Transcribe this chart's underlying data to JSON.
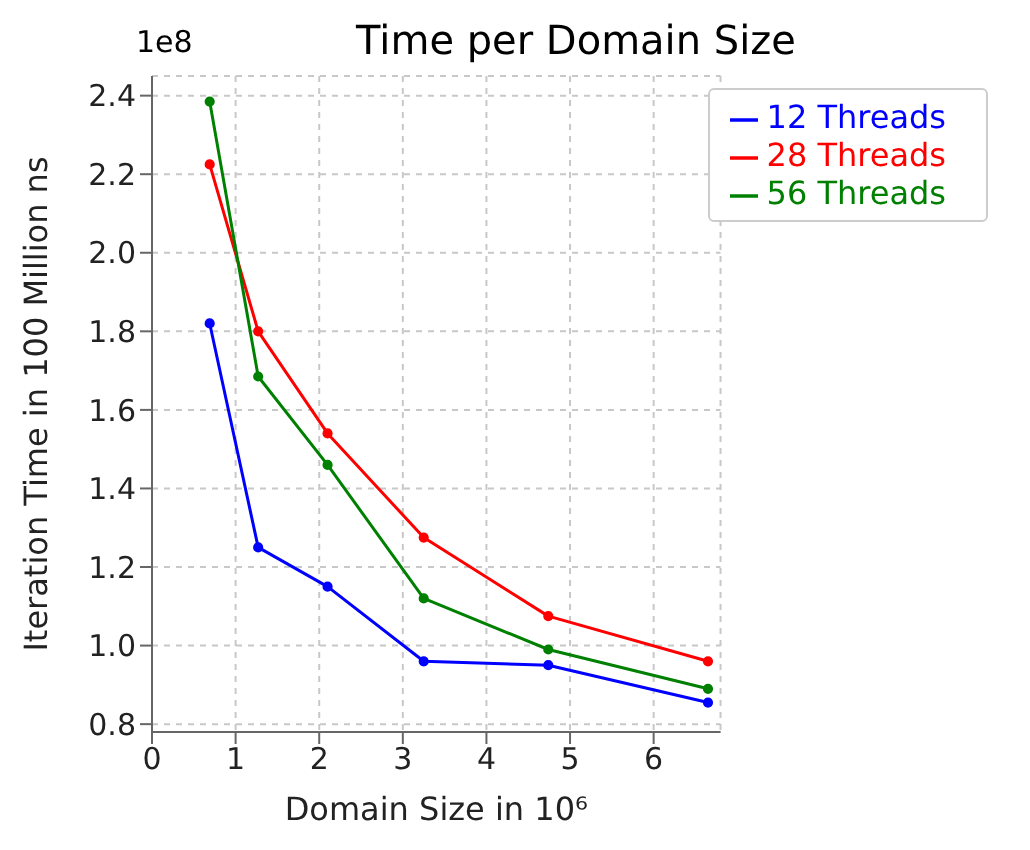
{
  "chart_data": {
    "type": "line",
    "title": "Time per Domain Size",
    "xlabel": "Domain Size in 10⁶",
    "ylabel": "Iteration Time in 100 Million ns",
    "annotations": [
      "1e8"
    ],
    "x": [
      0.69,
      1.27,
      2.1,
      3.25,
      4.74,
      6.65
    ],
    "series": [
      {
        "name": "12 Threads",
        "color": "#0000ff",
        "values": [
          1.82,
          1.25,
          1.15,
          0.96,
          0.95,
          0.855
        ]
      },
      {
        "name": "28 Threads",
        "color": "#ff0000",
        "values": [
          2.225,
          1.8,
          1.54,
          1.275,
          1.075,
          0.96
        ]
      },
      {
        "name": "56 Threads",
        "color": "#008000",
        "values": [
          2.385,
          1.685,
          1.46,
          1.12,
          0.99,
          0.89
        ]
      }
    ],
    "xlim": [
      0,
      6.8
    ],
    "xticks": [
      0,
      1,
      2,
      3,
      4,
      5,
      6
    ],
    "ylim": [
      0.78,
      2.45
    ],
    "yticks": [
      {
        "value": 0.8,
        "label": "0.8"
      },
      {
        "value": 1.0,
        "label": "1.0"
      },
      {
        "value": 1.2,
        "label": "1.2"
      },
      {
        "value": 1.4,
        "label": "1.4"
      },
      {
        "value": 1.6,
        "label": "1.6"
      },
      {
        "value": 1.8,
        "label": "1.8"
      },
      {
        "value": 2.0,
        "label": "2.0"
      },
      {
        "value": 2.2,
        "label": "2.2"
      },
      {
        "value": 2.4,
        "label": "2.4"
      }
    ],
    "grid": true,
    "legend": "top right",
    "marker": "circle",
    "line_style": "solid"
  }
}
